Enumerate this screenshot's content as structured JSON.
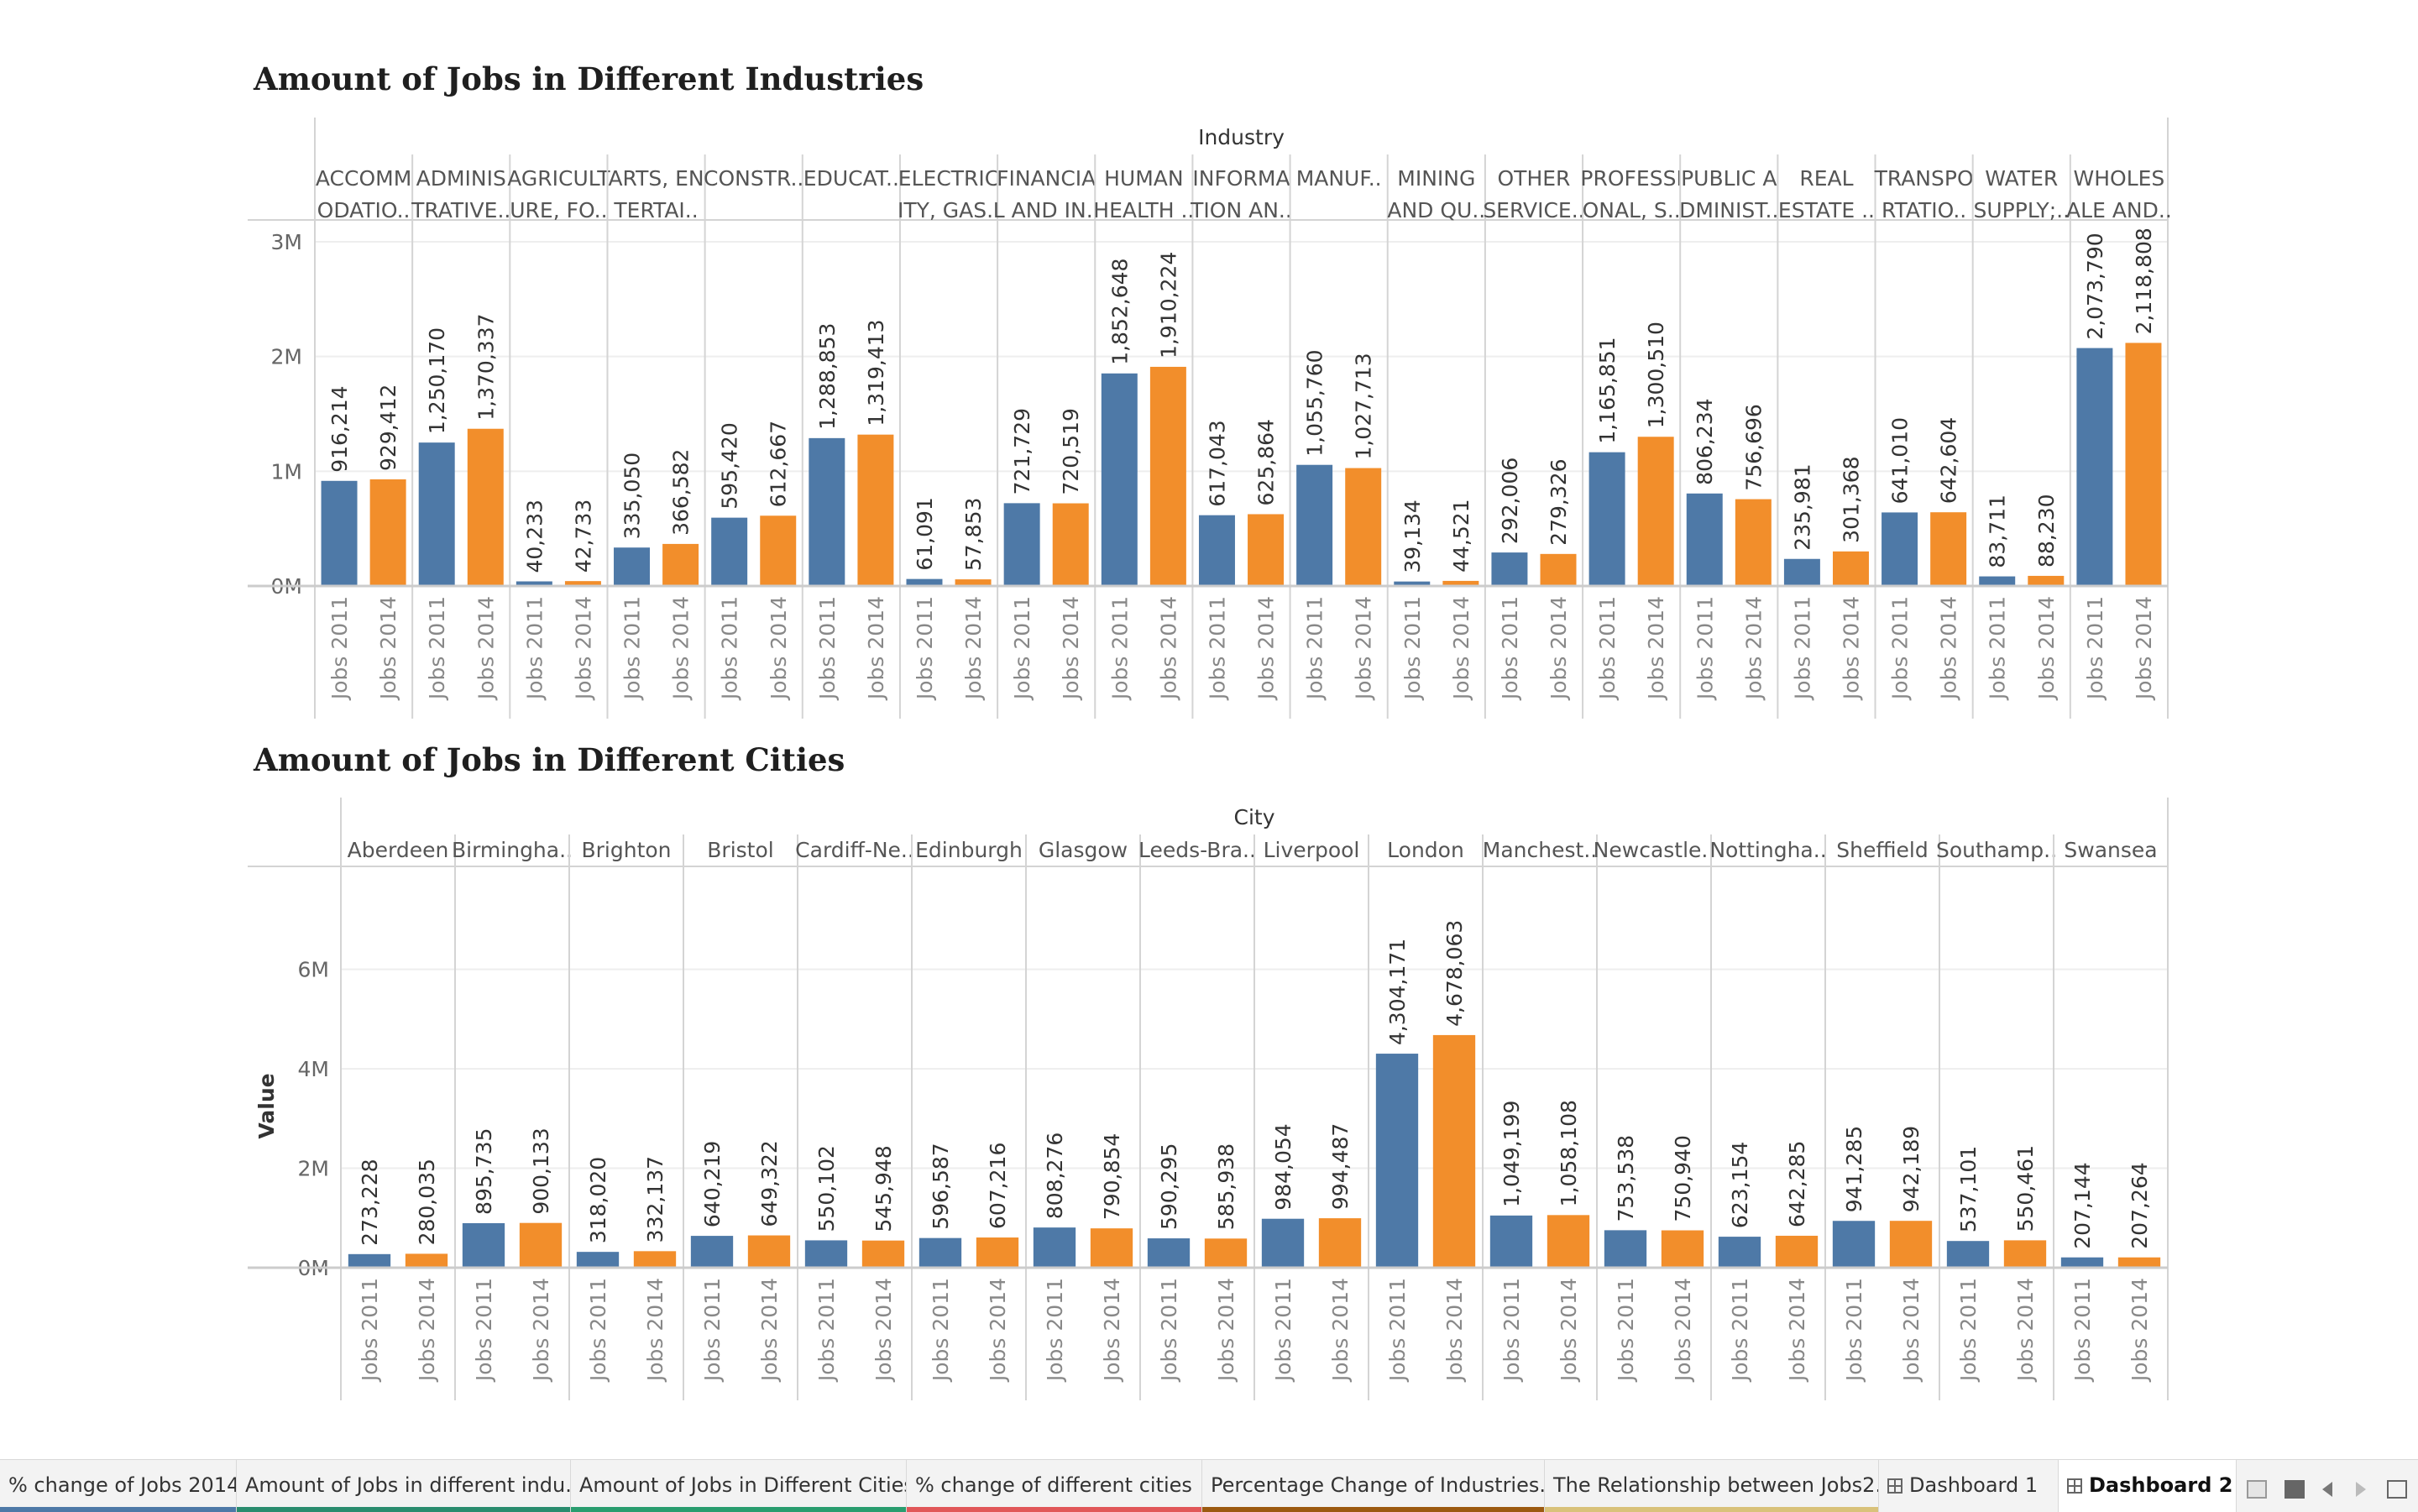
{
  "colors": {
    "jobs2011": "#4e79a7",
    "jobs2014": "#f28e2b"
  },
  "chart_data": [
    {
      "type": "bar",
      "title": "Amount of Jobs in Different Industries",
      "column_header": "Industry",
      "ylabel": "",
      "ylim": [
        0,
        3000000
      ],
      "yticks": [
        0,
        1000000,
        2000000,
        3000000
      ],
      "ytick_labels": [
        "0M",
        "1M",
        "2M",
        "3M"
      ],
      "categories": [
        [
          "ACCOMM",
          "ODATIO.."
        ],
        [
          "ADMINIS",
          "TRATIVE.."
        ],
        [
          "AGRICULT",
          "URE, FO.."
        ],
        [
          "ARTS, EN",
          "TERTAI.."
        ],
        [
          "CONSTR.."
        ],
        [
          "EDUCAT.."
        ],
        [
          "ELECTRIC",
          "ITY, GAS.."
        ],
        [
          "FINANCIA",
          "L AND IN.."
        ],
        [
          "HUMAN",
          "HEALTH .."
        ],
        [
          "INFORMA",
          "TION AN.."
        ],
        [
          "MANUF.."
        ],
        [
          "MINING",
          "AND QU.."
        ],
        [
          "OTHER",
          "SERVICE.."
        ],
        [
          "PROFESSI",
          "ONAL, S.."
        ],
        [
          "PUBLIC A",
          "DMINIST.."
        ],
        [
          "REAL",
          "ESTATE .."
        ],
        [
          "TRANSPO",
          "RTATIO.."
        ],
        [
          "WATER",
          "SUPPLY;.."
        ],
        [
          "WHOLES",
          "ALE AND.."
        ]
      ],
      "series": [
        {
          "name": "Jobs 2011",
          "values": [
            916214,
            1250170,
            40233,
            335050,
            595420,
            1288853,
            61091,
            721729,
            1852648,
            617043,
            1055760,
            39134,
            292006,
            1165851,
            806234,
            235981,
            641010,
            83711,
            2073790
          ],
          "labels": [
            "916,214",
            "1,250,170",
            "40,233",
            "335,050",
            "595,420",
            "1,288,853",
            "61,091",
            "721,729",
            "1,852,648",
            "617,043",
            "1,055,760",
            "39,134",
            "292,006",
            "1,165,851",
            "806,234",
            "235,981",
            "641,010",
            "83,711",
            "2,073,790"
          ]
        },
        {
          "name": "Jobs 2014",
          "values": [
            929412,
            1370337,
            42733,
            366582,
            612667,
            1319413,
            57853,
            720519,
            1910224,
            625864,
            1027713,
            44521,
            279326,
            1300510,
            756696,
            301368,
            642604,
            88230,
            2118808
          ],
          "labels": [
            "929,412",
            "1,370,337",
            "42,733",
            "366,582",
            "612,667",
            "1,319,413",
            "57,853",
            "720,519",
            "1,910,224",
            "625,864",
            "1,027,713",
            "44,521",
            "279,326",
            "1,300,510",
            "756,696",
            "301,368",
            "642,604",
            "88,230",
            "2,118,808"
          ]
        }
      ],
      "grid": true
    },
    {
      "type": "bar",
      "title": "Amount of Jobs in Different Cities",
      "column_header": "City",
      "ylabel": "Value",
      "ylim": [
        0,
        6500000
      ],
      "yticks": [
        0,
        2000000,
        4000000,
        6000000
      ],
      "ytick_labels": [
        "0M",
        "2M",
        "4M",
        "6M"
      ],
      "categories": [
        [
          "Aberdeen"
        ],
        [
          "Birmingha.."
        ],
        [
          "Brighton"
        ],
        [
          "Bristol"
        ],
        [
          "Cardiff-Ne.."
        ],
        [
          "Edinburgh"
        ],
        [
          "Glasgow"
        ],
        [
          "Leeds-Bra.."
        ],
        [
          "Liverpool"
        ],
        [
          "London"
        ],
        [
          "Manchest.."
        ],
        [
          "Newcastle.."
        ],
        [
          "Nottingha.."
        ],
        [
          "Sheffield"
        ],
        [
          "Southamp.."
        ],
        [
          "Swansea"
        ]
      ],
      "series": [
        {
          "name": "Jobs 2011",
          "values": [
            273228,
            895735,
            318020,
            640219,
            550102,
            596587,
            808276,
            590295,
            984054,
            4304171,
            1049199,
            753538,
            623154,
            941285,
            537101,
            207144
          ],
          "labels": [
            "273,228",
            "895,735",
            "318,020",
            "640,219",
            "550,102",
            "596,587",
            "808,276",
            "590,295",
            "984,054",
            "4,304,171",
            "1,049,199",
            "753,538",
            "623,154",
            "941,285",
            "537,101",
            "207,144"
          ]
        },
        {
          "name": "Jobs 2014",
          "values": [
            280035,
            900133,
            332137,
            649322,
            545948,
            607216,
            790854,
            585938,
            994487,
            4678063,
            1058108,
            750940,
            642285,
            942189,
            550461,
            207264
          ],
          "labels": [
            "280,035",
            "900,133",
            "332,137",
            "649,322",
            "545,948",
            "607,216",
            "790,854",
            "585,938",
            "994,487",
            "4,678,063",
            "1,058,108",
            "750,940",
            "642,285",
            "942,189",
            "550,461",
            "207,264"
          ]
        }
      ],
      "grid": true
    }
  ],
  "tabs": [
    {
      "label": "% change of Jobs 2014",
      "accent": "#4e79a7",
      "dashboard": false,
      "active": false
    },
    {
      "label": "Amount of Jobs in different indu...",
      "accent": "#2a8c6e",
      "dashboard": false,
      "active": false
    },
    {
      "label": "Amount of Jobs in Different Cities",
      "accent": "#2a9d6f",
      "dashboard": false,
      "active": false
    },
    {
      "label": "% change of different cities",
      "accent": "#e15759",
      "dashboard": false,
      "active": false
    },
    {
      "label": "Percentage Change of Industries...",
      "accent": "#9c5a10",
      "dashboard": false,
      "active": false
    },
    {
      "label": "The Relationship between Jobs2...",
      "accent": "#d9c27a",
      "dashboard": false,
      "active": false
    },
    {
      "label": "Dashboard 1",
      "accent": "",
      "dashboard": true,
      "active": false
    },
    {
      "label": "Dashboard 2",
      "accent": "",
      "dashboard": true,
      "active": true
    }
  ]
}
